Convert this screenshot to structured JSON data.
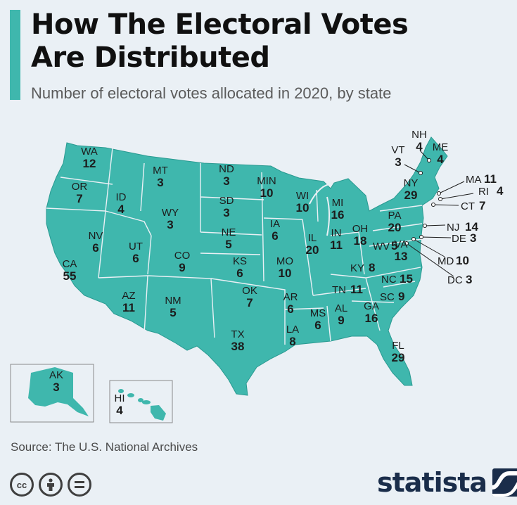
{
  "title_line1": "How The Electoral Votes",
  "title_line2": "Are Distributed",
  "subtitle": "Number of electoral votes allocated in 2020, by state",
  "source": "Source: The U.S. National Archives",
  "brand": "statista",
  "colors": {
    "map_fill": "#3fb7ad",
    "accent": "#3fb7ad",
    "background": "#eaf0f5",
    "brand": "#1a2d4a"
  },
  "icons": [
    "cc-icon",
    "attribution-icon",
    "no-derivatives-icon"
  ],
  "states": [
    {
      "abbr": "WA",
      "votes": "12"
    },
    {
      "abbr": "OR",
      "votes": "7"
    },
    {
      "abbr": "CA",
      "votes": "55"
    },
    {
      "abbr": "ID",
      "votes": "4"
    },
    {
      "abbr": "NV",
      "votes": "6"
    },
    {
      "abbr": "MT",
      "votes": "3"
    },
    {
      "abbr": "WY",
      "votes": "3"
    },
    {
      "abbr": "UT",
      "votes": "6"
    },
    {
      "abbr": "AZ",
      "votes": "11"
    },
    {
      "abbr": "CO",
      "votes": "9"
    },
    {
      "abbr": "NM",
      "votes": "5"
    },
    {
      "abbr": "ND",
      "votes": "3"
    },
    {
      "abbr": "SD",
      "votes": "3"
    },
    {
      "abbr": "NE",
      "votes": "5"
    },
    {
      "abbr": "KS",
      "votes": "6"
    },
    {
      "abbr": "OK",
      "votes": "7"
    },
    {
      "abbr": "TX",
      "votes": "38"
    },
    {
      "abbr": "MIN",
      "votes": "10"
    },
    {
      "abbr": "IA",
      "votes": "6"
    },
    {
      "abbr": "MO",
      "votes": "10"
    },
    {
      "abbr": "AR",
      "votes": "6"
    },
    {
      "abbr": "LA",
      "votes": "8"
    },
    {
      "abbr": "WI",
      "votes": "10"
    },
    {
      "abbr": "IL",
      "votes": "20"
    },
    {
      "abbr": "MI",
      "votes": "16"
    },
    {
      "abbr": "IN",
      "votes": "11"
    },
    {
      "abbr": "OH",
      "votes": "18"
    },
    {
      "abbr": "KY",
      "votes": "8"
    },
    {
      "abbr": "TN",
      "votes": "11"
    },
    {
      "abbr": "MS",
      "votes": "6"
    },
    {
      "abbr": "AL",
      "votes": "9"
    },
    {
      "abbr": "GA",
      "votes": "16"
    },
    {
      "abbr": "FL",
      "votes": "29"
    },
    {
      "abbr": "SC",
      "votes": "9"
    },
    {
      "abbr": "NC",
      "votes": "15"
    },
    {
      "abbr": "VA",
      "votes": "13"
    },
    {
      "abbr": "WV",
      "votes": "5"
    },
    {
      "abbr": "PA",
      "votes": "20"
    },
    {
      "abbr": "NY",
      "votes": "29"
    },
    {
      "abbr": "VT",
      "votes": "3"
    },
    {
      "abbr": "NH",
      "votes": "4"
    },
    {
      "abbr": "ME",
      "votes": "4"
    },
    {
      "abbr": "MA",
      "votes": "11"
    },
    {
      "abbr": "RI",
      "votes": "4"
    },
    {
      "abbr": "CT",
      "votes": "7"
    },
    {
      "abbr": "NJ",
      "votes": "14"
    },
    {
      "abbr": "DE",
      "votes": "3"
    },
    {
      "abbr": "MD",
      "votes": "10"
    },
    {
      "abbr": "DC",
      "votes": "3"
    },
    {
      "abbr": "AK",
      "votes": "3"
    },
    {
      "abbr": "HI",
      "votes": "4"
    }
  ]
}
